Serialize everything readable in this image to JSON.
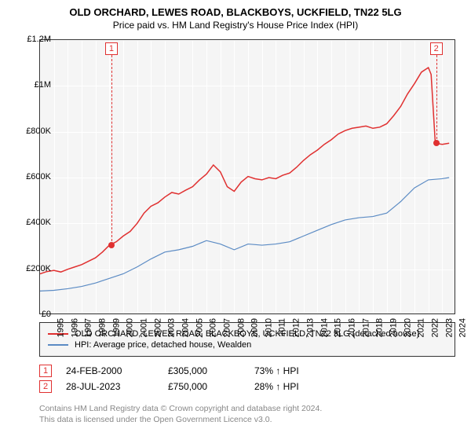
{
  "title": "OLD ORCHARD, LEWES ROAD, BLACKBOYS, UCKFIELD, TN22 5LG",
  "subtitle": "Price paid vs. HM Land Registry's House Price Index (HPI)",
  "chart": {
    "type": "line",
    "background_color": "#f5f5f5",
    "grid_color": "#ffffff",
    "border_color": "#333333",
    "x_range": [
      1995,
      2025
    ],
    "y_range": [
      0,
      1200000
    ],
    "y_ticks": [
      0,
      200000,
      400000,
      600000,
      800000,
      1000000,
      1200000
    ],
    "y_tick_labels": [
      "£0",
      "£200K",
      "£400K",
      "£600K",
      "£800K",
      "£1M",
      "£1.2M"
    ],
    "x_ticks": [
      1995,
      1996,
      1997,
      1998,
      1999,
      2000,
      2001,
      2002,
      2003,
      2004,
      2005,
      2006,
      2007,
      2008,
      2009,
      2010,
      2011,
      2012,
      2013,
      2014,
      2015,
      2016,
      2017,
      2018,
      2019,
      2020,
      2021,
      2022,
      2023,
      2024,
      2025
    ],
    "series": [
      {
        "name": "OLD ORCHARD, LEWES ROAD, BLACKBOYS, UCKFIELD, TN22 5LG (detached house)",
        "color": "#e03030",
        "line_width": 1.5,
        "data": [
          [
            1995,
            180000
          ],
          [
            1995.5,
            190000
          ],
          [
            1996,
            195000
          ],
          [
            1996.5,
            188000
          ],
          [
            1997,
            200000
          ],
          [
            1997.5,
            210000
          ],
          [
            1998,
            220000
          ],
          [
            1998.5,
            235000
          ],
          [
            1999,
            250000
          ],
          [
            1999.5,
            275000
          ],
          [
            2000,
            305000
          ],
          [
            2000.5,
            320000
          ],
          [
            2001,
            345000
          ],
          [
            2001.5,
            365000
          ],
          [
            2002,
            400000
          ],
          [
            2002.5,
            445000
          ],
          [
            2003,
            475000
          ],
          [
            2003.5,
            490000
          ],
          [
            2004,
            515000
          ],
          [
            2004.5,
            535000
          ],
          [
            2005,
            528000
          ],
          [
            2005.5,
            545000
          ],
          [
            2006,
            560000
          ],
          [
            2006.5,
            590000
          ],
          [
            2007,
            615000
          ],
          [
            2007.5,
            655000
          ],
          [
            2008,
            625000
          ],
          [
            2008.5,
            560000
          ],
          [
            2009,
            540000
          ],
          [
            2009.5,
            580000
          ],
          [
            2010,
            605000
          ],
          [
            2010.5,
            595000
          ],
          [
            2011,
            590000
          ],
          [
            2011.5,
            600000
          ],
          [
            2012,
            595000
          ],
          [
            2012.5,
            610000
          ],
          [
            2013,
            620000
          ],
          [
            2013.5,
            645000
          ],
          [
            2014,
            675000
          ],
          [
            2014.5,
            700000
          ],
          [
            2015,
            720000
          ],
          [
            2015.5,
            745000
          ],
          [
            2016,
            765000
          ],
          [
            2016.5,
            790000
          ],
          [
            2017,
            805000
          ],
          [
            2017.5,
            815000
          ],
          [
            2018,
            820000
          ],
          [
            2018.5,
            825000
          ],
          [
            2019,
            815000
          ],
          [
            2019.5,
            820000
          ],
          [
            2020,
            835000
          ],
          [
            2020.5,
            870000
          ],
          [
            2021,
            910000
          ],
          [
            2021.5,
            965000
          ],
          [
            2022,
            1010000
          ],
          [
            2022.5,
            1060000
          ],
          [
            2023,
            1080000
          ],
          [
            2023.2,
            1050000
          ],
          [
            2023.5,
            750000
          ],
          [
            2024,
            745000
          ],
          [
            2024.5,
            750000
          ]
        ]
      },
      {
        "name": "HPI: Average price, detached house, Wealden",
        "color": "#5b8bc4",
        "line_width": 1.2,
        "data": [
          [
            1995,
            105000
          ],
          [
            1996,
            108000
          ],
          [
            1997,
            115000
          ],
          [
            1998,
            125000
          ],
          [
            1999,
            140000
          ],
          [
            2000,
            160000
          ],
          [
            2001,
            180000
          ],
          [
            2002,
            210000
          ],
          [
            2003,
            245000
          ],
          [
            2004,
            275000
          ],
          [
            2005,
            285000
          ],
          [
            2006,
            300000
          ],
          [
            2007,
            325000
          ],
          [
            2008,
            310000
          ],
          [
            2009,
            285000
          ],
          [
            2010,
            310000
          ],
          [
            2011,
            305000
          ],
          [
            2012,
            310000
          ],
          [
            2013,
            320000
          ],
          [
            2014,
            345000
          ],
          [
            2015,
            370000
          ],
          [
            2016,
            395000
          ],
          [
            2017,
            415000
          ],
          [
            2018,
            425000
          ],
          [
            2019,
            430000
          ],
          [
            2020,
            445000
          ],
          [
            2021,
            495000
          ],
          [
            2022,
            555000
          ],
          [
            2023,
            590000
          ],
          [
            2024,
            595000
          ],
          [
            2024.5,
            600000
          ]
        ]
      }
    ],
    "markers": [
      {
        "label": "1",
        "x": 2000.15,
        "y": 305000,
        "color": "#e03030",
        "label_y_offset": -242
      },
      {
        "label": "2",
        "x": 2023.57,
        "y": 750000,
        "color": "#e03030",
        "label_y_offset": -112
      }
    ]
  },
  "legend": {
    "items": [
      {
        "color": "#e03030",
        "label": "OLD ORCHARD, LEWES ROAD, BLACKBOYS, UCKFIELD, TN22 5LG (detached house)"
      },
      {
        "color": "#5b8bc4",
        "label": "HPI: Average price, detached house, Wealden"
      }
    ]
  },
  "transactions": [
    {
      "num": "1",
      "date": "24-FEB-2000",
      "price": "£305,000",
      "pct": "73%",
      "arrow": "↑",
      "note": "HPI",
      "color": "#e03030"
    },
    {
      "num": "2",
      "date": "28-JUL-2023",
      "price": "£750,000",
      "pct": "28%",
      "arrow": "↑",
      "note": "HPI",
      "color": "#e03030"
    }
  ],
  "footer": {
    "line1": "Contains HM Land Registry data © Crown copyright and database right 2024.",
    "line2": "This data is licensed under the Open Government Licence v3.0."
  }
}
